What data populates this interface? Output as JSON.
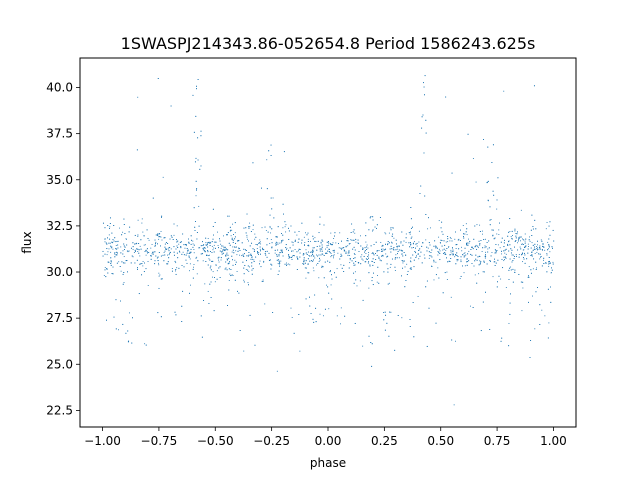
{
  "chart_data": {
    "type": "scatter",
    "title": "1SWASPJ214343.86-052654.8 Period 1586243.625s",
    "xlabel": "phase",
    "ylabel": "flux",
    "xlim": [
      -1.1,
      1.1
    ],
    "ylim": [
      21.6,
      41.6
    ],
    "xticks": [
      -1.0,
      -0.75,
      -0.5,
      -0.25,
      0.0,
      0.25,
      0.5,
      0.75,
      1.0
    ],
    "xtick_labels": [
      "−1.00",
      "−0.75",
      "−0.50",
      "−0.25",
      "0.00",
      "0.25",
      "0.50",
      "0.75",
      "1.00"
    ],
    "yticks": [
      22.5,
      25.0,
      27.5,
      30.0,
      32.5,
      35.0,
      37.5,
      40.0
    ],
    "ytick_labels": [
      "22.5",
      "25.0",
      "27.5",
      "30.0",
      "32.5",
      "35.0",
      "37.5",
      "40.0"
    ],
    "grid": false,
    "series": [
      {
        "marker_color": "#1f77b4",
        "x_range": [
          -1.0,
          1.0
        ],
        "bulk_flux_range": [
          28.5,
          34.0
        ],
        "median_flux": 31.2,
        "min_flux": 22.5,
        "max_flux": 40.8,
        "spike_phases": [
          -0.58,
          0.42
        ],
        "spike_peak_flux": 40.8,
        "bump_phases": [
          -0.27,
          0.73
        ],
        "bump_peak_flux": 37.0
      }
    ]
  }
}
